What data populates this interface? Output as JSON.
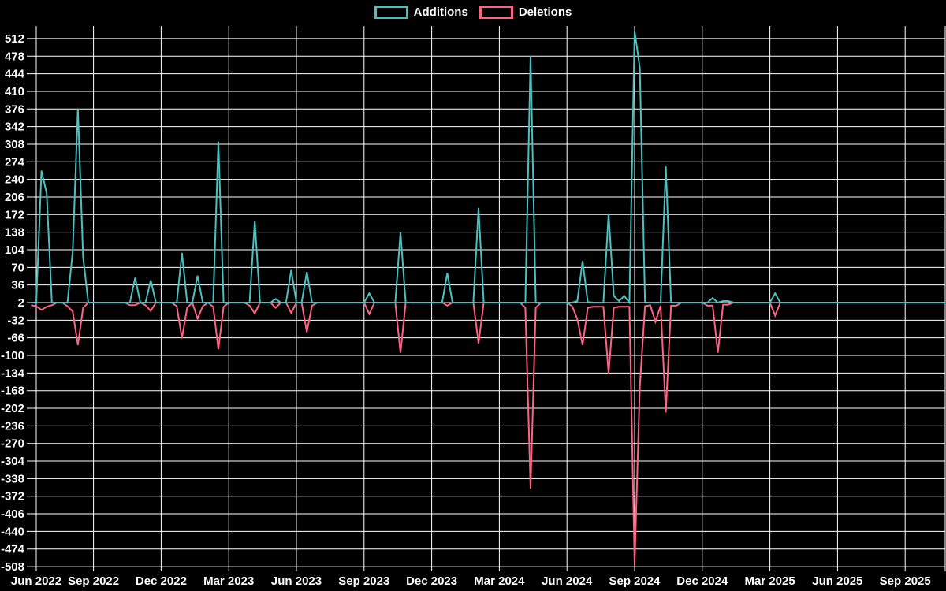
{
  "chart_data": {
    "type": "line",
    "title": "",
    "legend_position": "top",
    "grid": true,
    "baseline": 2,
    "colors": {
      "additions": "#4bc0c0",
      "deletions": "#ff6384",
      "grid": "#ffffff",
      "text": "#ffffff",
      "background": "#000000"
    },
    "series": [
      {
        "name": "Additions",
        "color": "#4bc0c0"
      },
      {
        "name": "Deletions",
        "color": "#ff6384"
      }
    ],
    "y_axis": {
      "min": -508,
      "max": 512,
      "step": 34,
      "ticks": [
        512,
        478,
        444,
        410,
        376,
        342,
        308,
        274,
        240,
        206,
        172,
        138,
        104,
        70,
        36,
        2,
        -32,
        -66,
        -100,
        -134,
        -168,
        -202,
        -236,
        -270,
        -304,
        -338,
        -372,
        -406,
        -440,
        -474,
        -508
      ]
    },
    "x_axis": {
      "unit": "weeks",
      "ticks": [
        {
          "label": "Jun 2022",
          "week": 0
        },
        {
          "label": "Sep 2022",
          "week": 11
        },
        {
          "label": "Dec 2022",
          "week": 24
        },
        {
          "label": "Mar 2023",
          "week": 37
        },
        {
          "label": "Jun 2023",
          "week": 50
        },
        {
          "label": "Sep 2023",
          "week": 63
        },
        {
          "label": "Dec 2023",
          "week": 76
        },
        {
          "label": "Mar 2024",
          "week": 89
        },
        {
          "label": "Jun 2024",
          "week": 102
        },
        {
          "label": "Sep 2024",
          "week": 115
        },
        {
          "label": "Dec 2024",
          "week": 128
        },
        {
          "label": "Mar 2025",
          "week": 141
        },
        {
          "label": "Jun 2025",
          "week": 154
        },
        {
          "label": "Sep 2025",
          "week": 167
        }
      ]
    },
    "points_format": [
      "week_index",
      "additions",
      "deletions"
    ],
    "points": [
      [
        -1,
        2,
        -3
      ],
      [
        0,
        2,
        -5
      ],
      [
        1,
        257,
        -12
      ],
      [
        2,
        213,
        -6
      ],
      [
        3,
        2,
        -3
      ],
      [
        4,
        2,
        2
      ],
      [
        5,
        2,
        2
      ],
      [
        6,
        2,
        -5
      ],
      [
        7,
        100,
        -15
      ],
      [
        8,
        377,
        -80
      ],
      [
        9,
        90,
        -8
      ],
      [
        10,
        2,
        2
      ],
      [
        17,
        2,
        2
      ],
      [
        18,
        2,
        -3
      ],
      [
        19,
        50,
        -3
      ],
      [
        20,
        2,
        2
      ],
      [
        21,
        2,
        -3
      ],
      [
        22,
        45,
        -14
      ],
      [
        23,
        2,
        2
      ],
      [
        26,
        2,
        2
      ],
      [
        27,
        2,
        -5
      ],
      [
        28,
        98,
        -67
      ],
      [
        29,
        2,
        -8
      ],
      [
        30,
        2,
        2
      ],
      [
        31,
        54,
        -29
      ],
      [
        32,
        2,
        -5
      ],
      [
        33,
        2,
        2
      ],
      [
        34,
        2,
        -6
      ],
      [
        35,
        313,
        -88
      ],
      [
        36,
        2,
        -6
      ],
      [
        37,
        2,
        2
      ],
      [
        40,
        2,
        2
      ],
      [
        41,
        2,
        -4
      ],
      [
        42,
        160,
        -19
      ],
      [
        43,
        2,
        2
      ],
      [
        45,
        2,
        2
      ],
      [
        46,
        9,
        -8
      ],
      [
        47,
        2,
        2
      ],
      [
        48,
        2,
        2
      ],
      [
        49,
        65,
        -18
      ],
      [
        50,
        2,
        2
      ],
      [
        51,
        2,
        2
      ],
      [
        52,
        61,
        -55
      ],
      [
        53,
        2,
        -4
      ],
      [
        54,
        2,
        2
      ],
      [
        63,
        2,
        2
      ],
      [
        64,
        20,
        -20
      ],
      [
        65,
        2,
        2
      ],
      [
        69,
        2,
        2
      ],
      [
        70,
        138,
        -95
      ],
      [
        71,
        2,
        2
      ],
      [
        78,
        2,
        2
      ],
      [
        79,
        59,
        -4
      ],
      [
        80,
        2,
        2
      ],
      [
        84,
        2,
        2
      ],
      [
        85,
        185,
        -77
      ],
      [
        86,
        2,
        2
      ],
      [
        93,
        2,
        2
      ],
      [
        94,
        2,
        -8
      ],
      [
        95,
        479,
        -357
      ],
      [
        96,
        2,
        -8
      ],
      [
        97,
        2,
        2
      ],
      [
        102,
        2,
        2
      ],
      [
        103,
        2,
        -5
      ],
      [
        104,
        5,
        -30
      ],
      [
        105,
        82,
        -80
      ],
      [
        106,
        3,
        -8
      ],
      [
        107,
        2,
        -6
      ],
      [
        108,
        2,
        -6
      ],
      [
        109,
        2,
        -6
      ],
      [
        110,
        174,
        -135
      ],
      [
        111,
        15,
        -8
      ],
      [
        112,
        5,
        -6
      ],
      [
        113,
        15,
        -6
      ],
      [
        114,
        2,
        -6
      ],
      [
        115,
        527,
        -505
      ],
      [
        116,
        455,
        -160
      ],
      [
        117,
        2,
        -5
      ],
      [
        118,
        2,
        -3
      ],
      [
        119,
        2,
        -35
      ],
      [
        120,
        2,
        -4
      ],
      [
        121,
        265,
        -210
      ],
      [
        122,
        2,
        -4
      ],
      [
        123,
        2,
        -4
      ],
      [
        124,
        2,
        2
      ],
      [
        128,
        2,
        2
      ],
      [
        129,
        2,
        -4
      ],
      [
        130,
        11,
        -4
      ],
      [
        131,
        2,
        -95
      ],
      [
        132,
        5,
        -2
      ],
      [
        133,
        5,
        -2
      ],
      [
        134,
        2,
        2
      ],
      [
        141,
        2,
        2
      ],
      [
        142,
        20,
        -23
      ],
      [
        143,
        2,
        2
      ],
      [
        175,
        2,
        2
      ]
    ]
  }
}
